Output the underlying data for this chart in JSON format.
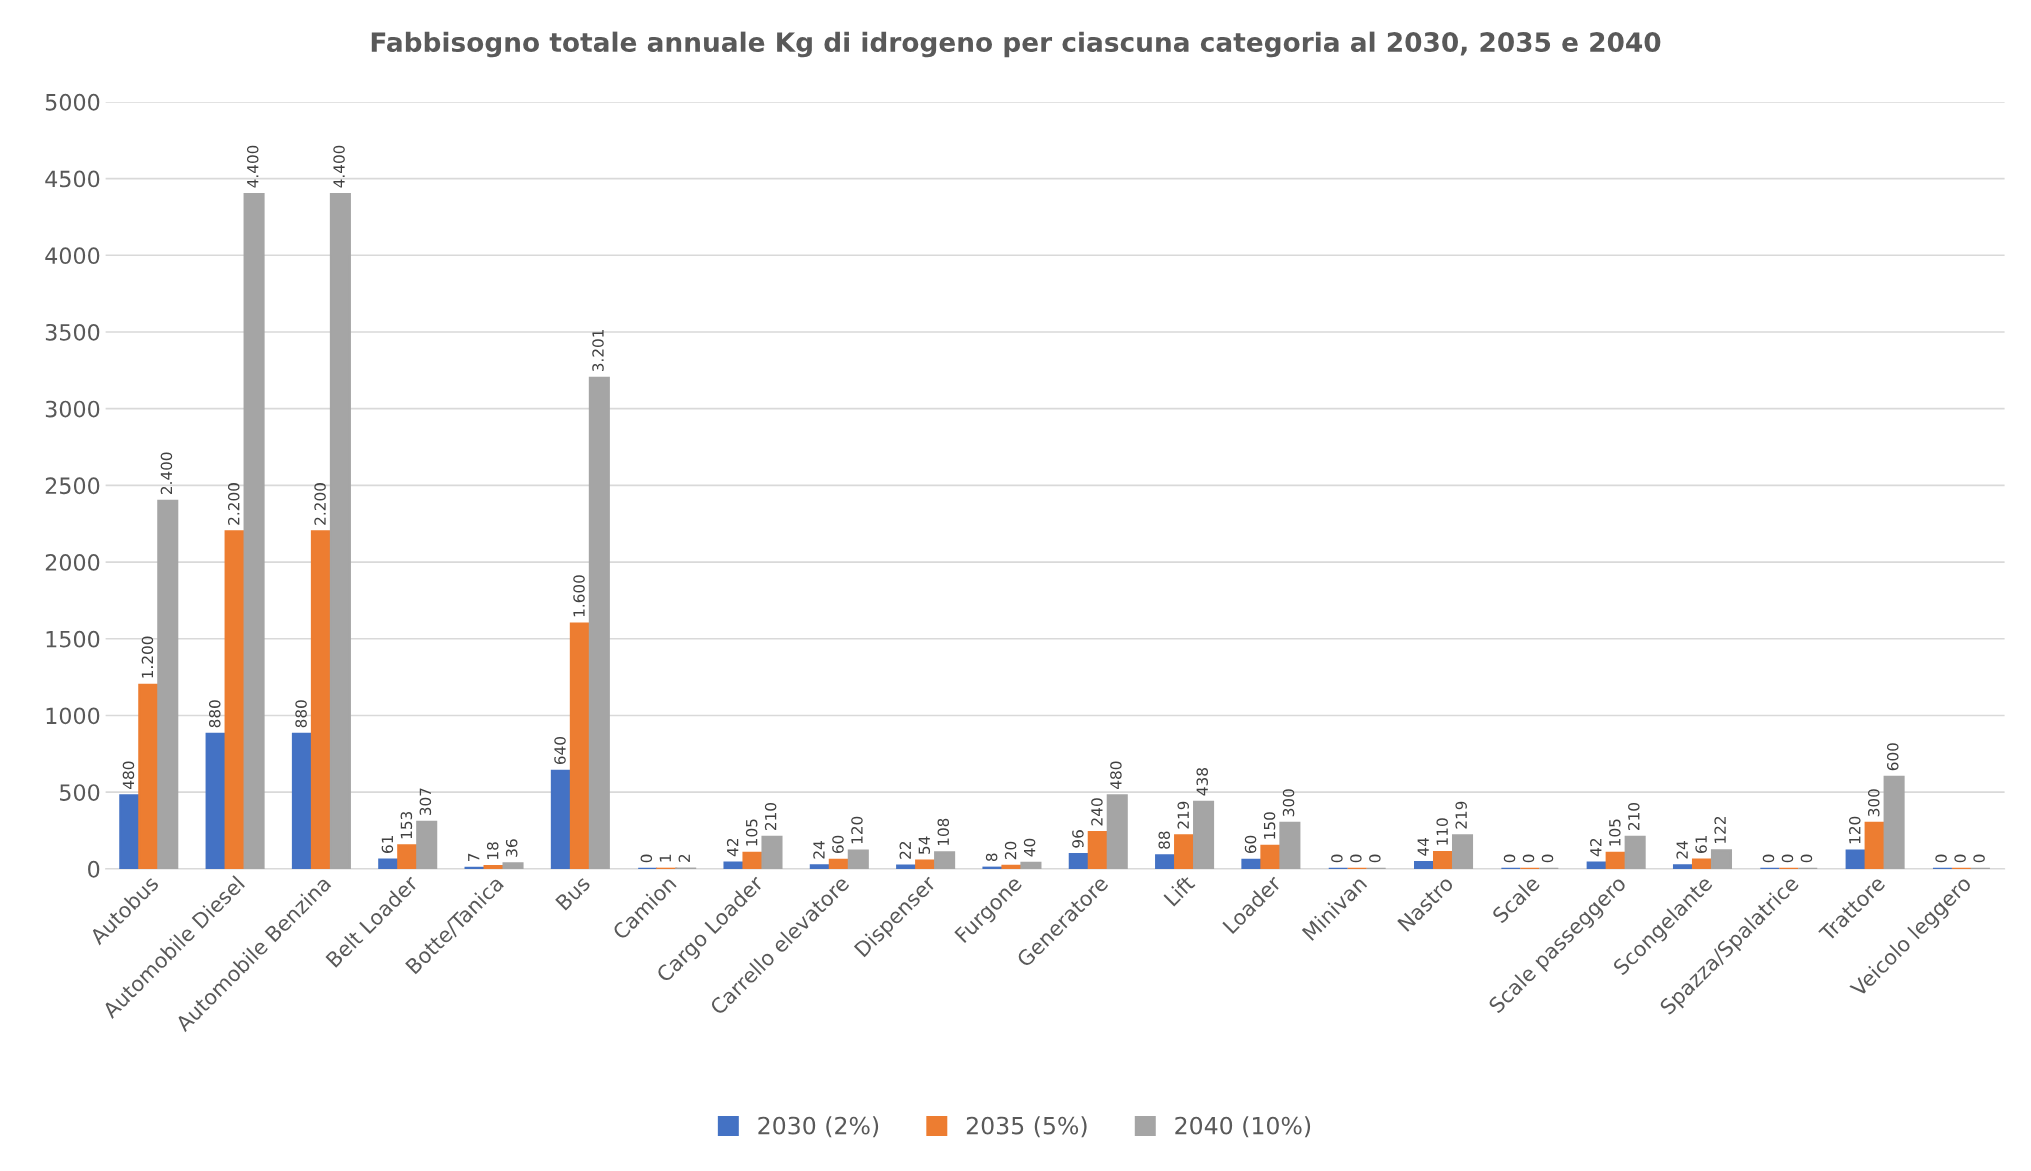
{
  "chart_data": {
    "type": "bar",
    "title": "Fabbisogno totale annuale Kg di idrogeno per ciascuna categoria al 2030, 2035 e 2040",
    "categories": [
      "Autobus",
      "Automobile Diesel",
      "Automobile Benzina",
      "Belt Loader",
      "Botte/Tanica",
      "Bus",
      "Camion",
      "Cargo Loader",
      "Carrello elevatore",
      "Dispenser",
      "Furgone",
      "Generatore",
      "Lift",
      "Loader",
      "Minivan",
      "Nastro",
      "Scale",
      "Scale passeggero",
      "Scongelante",
      "Spazza/Spalatrice",
      "Trattore",
      "Veicolo leggero"
    ],
    "series": [
      {
        "name": "2030 (2%)",
        "color": "#4472c4",
        "values": [
          480,
          880,
          880,
          61,
          7,
          640,
          0,
          42,
          24,
          22,
          8,
          96,
          88,
          60,
          0,
          44,
          0,
          42,
          24,
          0,
          120,
          0
        ],
        "value_labels": [
          "480",
          "880",
          "880",
          "61",
          "7",
          "640",
          "0",
          "42",
          "24",
          "22",
          "8",
          "96",
          "88",
          "60",
          "0",
          "44",
          "0",
          "42",
          "24",
          "0",
          "120",
          "0"
        ]
      },
      {
        "name": "2035 (5%)",
        "color": "#ed7d31",
        "values": [
          1200,
          2200,
          2200,
          153,
          18,
          1600,
          1,
          105,
          60,
          54,
          20,
          240,
          219,
          150,
          0,
          110,
          0,
          105,
          61,
          0,
          300,
          0
        ],
        "value_labels": [
          "1.200",
          "2.200",
          "2.200",
          "153",
          "18",
          "1.600",
          "1",
          "105",
          "60",
          "54",
          "20",
          "240",
          "219",
          "150",
          "0",
          "110",
          "0",
          "105",
          "61",
          "0",
          "300",
          "0"
        ]
      },
      {
        "name": "2040 (10%)",
        "color": "#a5a5a5",
        "values": [
          2400,
          4400,
          4400,
          307,
          36,
          3201,
          2,
          210,
          120,
          108,
          40,
          480,
          438,
          300,
          0,
          219,
          0,
          210,
          122,
          0,
          600,
          0
        ],
        "value_labels": [
          "2.400",
          "4.400",
          "4.400",
          "307",
          "36",
          "3.201",
          "2",
          "210",
          "120",
          "108",
          "40",
          "480",
          "438",
          "300",
          "0",
          "219",
          "0",
          "210",
          "122",
          "0",
          "600",
          "0"
        ]
      }
    ],
    "ylim": [
      0,
      5000
    ],
    "yticks": [
      0,
      500,
      1000,
      1500,
      2000,
      2500,
      3000,
      3500,
      4000,
      4500,
      5000
    ],
    "grid": "y",
    "legend": "bottom"
  }
}
